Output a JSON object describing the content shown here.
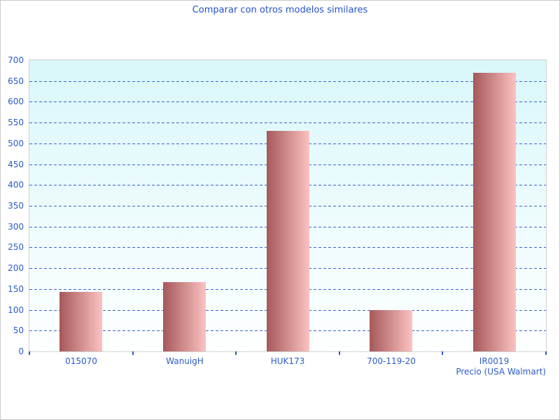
{
  "chart_data": {
    "type": "bar",
    "title": "Comparar con otros modelos similares",
    "categories": [
      "015070",
      "WanuigH",
      "HUK173",
      "700-119-20",
      "IR0019"
    ],
    "values": [
      143,
      167,
      530,
      100,
      670
    ],
    "xlabel": "Precio (USA Walmart)",
    "ylabel": "",
    "ylim": [
      0,
      700
    ],
    "ytick_step": 50,
    "grid": "horizontal-dashed",
    "legend": "none",
    "bar_style": "horizontal-gradient"
  },
  "colors": {
    "title_text": "#2553cb",
    "axis_text": "#2b5bc9",
    "tick": "#2b5bc9",
    "gridline": "#3c64cb",
    "plot_border": "#d2d2d2",
    "page_border": "#c9c9c9",
    "bar_left": "#a6585a",
    "bar_right": "#fbc2c1",
    "plot_bg_top": "#d9f7fa",
    "plot_bg_bottom": "#feffff"
  }
}
